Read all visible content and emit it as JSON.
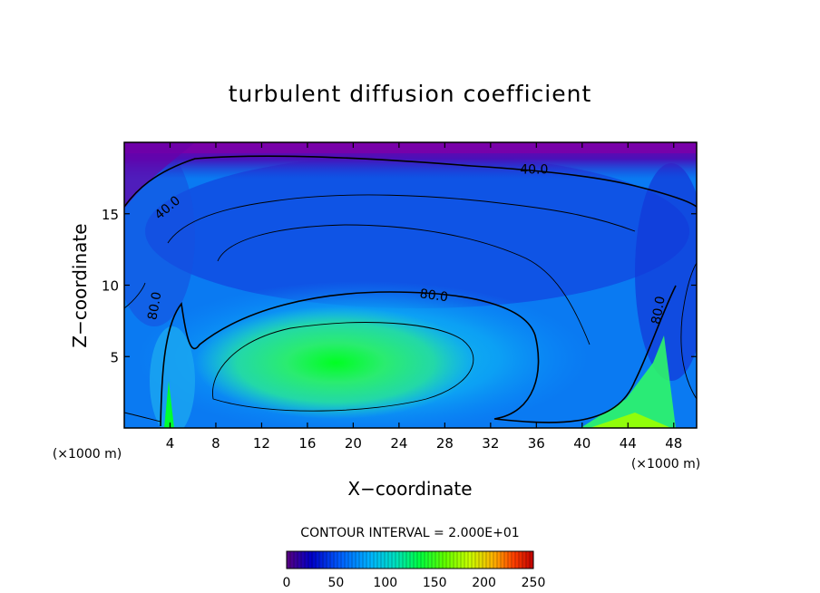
{
  "chart_data": {
    "type": "heatmap",
    "title": "turbulent diffusion coefficient",
    "xlabel": "X−coordinate",
    "ylabel": "Z−coordinate",
    "x_unit_left": "(×1000 m)",
    "x_unit_right": "(×1000 m)",
    "xlim": [
      0,
      50
    ],
    "ylim": [
      0,
      20
    ],
    "x_ticks": [
      4,
      8,
      12,
      16,
      20,
      24,
      28,
      32,
      36,
      40,
      44,
      48
    ],
    "y_ticks": [
      5,
      10,
      15
    ],
    "grid": false,
    "contour_interval_text": "CONTOUR INTERVAL = 2.000E+01",
    "contour_labels": [
      {
        "text": "40.0",
        "x": 35.8,
        "z": 17.8
      },
      {
        "text": "40.0",
        "x": 4.0,
        "z": 15.2
      },
      {
        "text": "80.0",
        "x": 27.0,
        "z": 9.0
      },
      {
        "text": "80.0",
        "x": 3.0,
        "z": 8.5
      },
      {
        "text": "80.0",
        "x": 47.0,
        "z": 8.2
      }
    ],
    "field_features": [
      {
        "description": "top layer minimum",
        "approx_value": 0
      },
      {
        "description": "central maximum",
        "x": 20,
        "z": 4,
        "approx_value": 150
      }
    ],
    "colorbar": {
      "min": 0,
      "max": 250,
      "ticks": [
        0,
        50,
        100,
        150,
        200,
        250
      ],
      "colors": [
        "#5a0080",
        "#0000c8",
        "#0060ff",
        "#00b4ff",
        "#00e0c0",
        "#00ff40",
        "#60ff00",
        "#c8ff00",
        "#ffb000",
        "#ff4000",
        "#c00000"
      ]
    }
  }
}
